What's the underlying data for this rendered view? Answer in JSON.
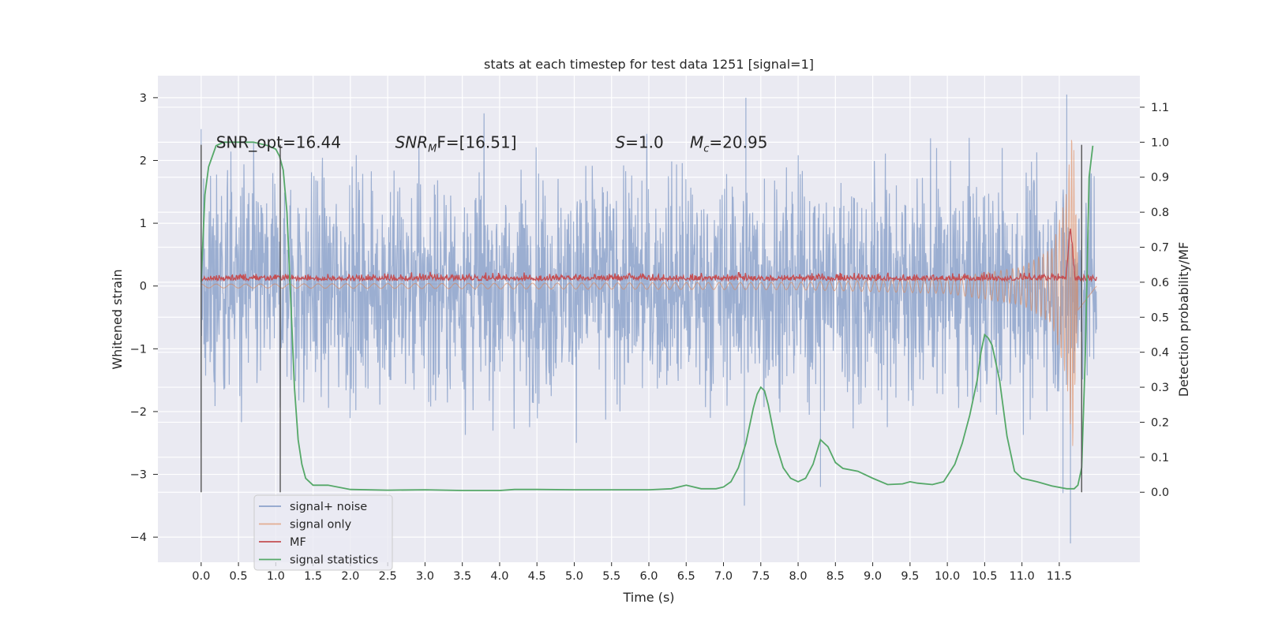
{
  "chart_data": {
    "type": "line",
    "title": "stats at each timestep for test data 1251 [signal=1]",
    "xlabel": "Time (s)",
    "ylabel": "Whitened strain",
    "ylabel_right": "Detection probability/MF",
    "xlim": [
      -0.58,
      12.58
    ],
    "ylim": [
      -4.4,
      3.35
    ],
    "ylim_right": [
      -0.2,
      1.19
    ],
    "x_ticks": [
      0.0,
      0.5,
      1.0,
      1.5,
      2.0,
      2.5,
      3.0,
      3.5,
      4.0,
      4.5,
      5.0,
      5.5,
      6.0,
      6.5,
      7.0,
      7.5,
      8.0,
      8.5,
      9.0,
      9.5,
      10.0,
      10.5,
      11.0,
      11.5
    ],
    "x_tick_labels": [
      "0.0",
      "0.5",
      "1.0",
      "1.5",
      "2.0",
      "2.5",
      "3.0",
      "3.5",
      "4.0",
      "4.5",
      "5.0",
      "5.5",
      "6.0",
      "6.5",
      "7.0",
      "7.5",
      "8.0",
      "8.5",
      "9.0",
      "9.5",
      "10.0",
      "10.5",
      "11.0",
      "11.5"
    ],
    "y_ticks": [
      -4,
      -3,
      -2,
      -1,
      0,
      1,
      2,
      3
    ],
    "y_tick_labels": [
      "−4",
      "−3",
      "−2",
      "−1",
      "0",
      "1",
      "2",
      "3"
    ],
    "y_ticks_right": [
      0.0,
      0.1,
      0.2,
      0.3,
      0.4,
      0.5,
      0.6,
      0.7,
      0.8,
      0.9,
      1.0,
      1.1
    ],
    "y_tick_labels_right": [
      "0.0",
      "0.1",
      "0.2",
      "0.3",
      "0.4",
      "0.5",
      "0.6",
      "0.7",
      "0.8",
      "0.9",
      "1.0",
      "1.1"
    ],
    "grid": true,
    "legend_position": "lower-left",
    "series": [
      {
        "name": "signal+ noise",
        "color": "#4c72b0",
        "axis": "left",
        "x_range": [
          0.0,
          12.0
        ],
        "amplitude_band": [
          -2.0,
          2.0
        ],
        "extreme_points": [
          [
            0.0,
            2.5
          ],
          [
            0.0,
            -2.5
          ],
          [
            7.3,
            3.0
          ],
          [
            7.28,
            -3.5
          ],
          [
            8.3,
            -3.2
          ],
          [
            11.6,
            3.05
          ],
          [
            11.65,
            -4.1
          ],
          [
            11.55,
            -3.3
          ]
        ]
      },
      {
        "name": "signal only",
        "color": "#dd8452",
        "axis": "left",
        "x_range": [
          0.0,
          12.0
        ],
        "amplitude_envelope": [
          [
            0.0,
            0.03
          ],
          [
            8.0,
            0.06
          ],
          [
            10.0,
            0.12
          ],
          [
            11.0,
            0.3
          ],
          [
            11.4,
            0.6
          ],
          [
            11.6,
            1.5
          ],
          [
            11.68,
            2.7
          ],
          [
            11.75,
            0.4
          ],
          [
            12.0,
            0.0
          ]
        ]
      },
      {
        "name": "MF",
        "color": "#c44e52",
        "axis": "right",
        "x_range": [
          0.0,
          12.0
        ],
        "baseline": 0.605,
        "peak": [
          11.65,
          0.755
        ]
      },
      {
        "name": "signal statistics",
        "color": "#55a868",
        "axis": "right",
        "x": [
          0.0,
          0.05,
          0.1,
          0.2,
          0.3,
          0.5,
          0.7,
          0.9,
          1.0,
          1.05,
          1.1,
          1.15,
          1.2,
          1.25,
          1.3,
          1.35,
          1.4,
          1.5,
          1.7,
          2.0,
          2.5,
          3.0,
          3.5,
          4.0,
          4.2,
          4.5,
          5.0,
          5.5,
          6.0,
          6.3,
          6.5,
          6.7,
          6.9,
          7.0,
          7.1,
          7.2,
          7.3,
          7.4,
          7.45,
          7.5,
          7.55,
          7.6,
          7.7,
          7.8,
          7.9,
          8.0,
          8.1,
          8.2,
          8.3,
          8.4,
          8.5,
          8.6,
          8.8,
          9.0,
          9.2,
          9.4,
          9.5,
          9.6,
          9.8,
          9.95,
          10.1,
          10.2,
          10.3,
          10.4,
          10.45,
          10.5,
          10.55,
          10.6,
          10.7,
          10.8,
          10.9,
          11.0,
          11.2,
          11.4,
          11.6,
          11.7,
          11.75,
          11.8,
          11.85,
          11.9,
          11.95
        ],
        "y": [
          0.6,
          0.85,
          0.93,
          0.99,
          1.0,
          1.0,
          1.0,
          0.99,
          0.98,
          0.96,
          0.92,
          0.8,
          0.55,
          0.3,
          0.15,
          0.08,
          0.04,
          0.02,
          0.02,
          0.008,
          0.006,
          0.007,
          0.005,
          0.005,
          0.008,
          0.008,
          0.007,
          0.007,
          0.007,
          0.01,
          0.02,
          0.01,
          0.01,
          0.015,
          0.03,
          0.07,
          0.14,
          0.24,
          0.28,
          0.3,
          0.29,
          0.25,
          0.14,
          0.07,
          0.04,
          0.03,
          0.04,
          0.08,
          0.15,
          0.13,
          0.085,
          0.068,
          0.06,
          0.04,
          0.022,
          0.024,
          0.03,
          0.026,
          0.022,
          0.03,
          0.08,
          0.14,
          0.22,
          0.32,
          0.4,
          0.45,
          0.44,
          0.42,
          0.32,
          0.16,
          0.06,
          0.04,
          0.03,
          0.018,
          0.01,
          0.01,
          0.02,
          0.07,
          0.4,
          0.9,
          0.99
        ]
      }
    ],
    "vertical_lines": [
      0.0,
      1.06,
      11.8
    ],
    "annotations": [
      {
        "text": "SNR_opt=16.44",
        "x": 0.2,
        "y": 2.2
      },
      {
        "main": "SNR",
        "sub": "M",
        "tail": "F=[16.51]",
        "x": 2.6,
        "y": 2.2
      },
      {
        "main": "S",
        "tail": "=1.0",
        "x": 5.55,
        "y": 2.2
      },
      {
        "main": "M",
        "sub": "c",
        "tail": "=20.95",
        "x": 6.55,
        "y": 2.2
      }
    ]
  }
}
